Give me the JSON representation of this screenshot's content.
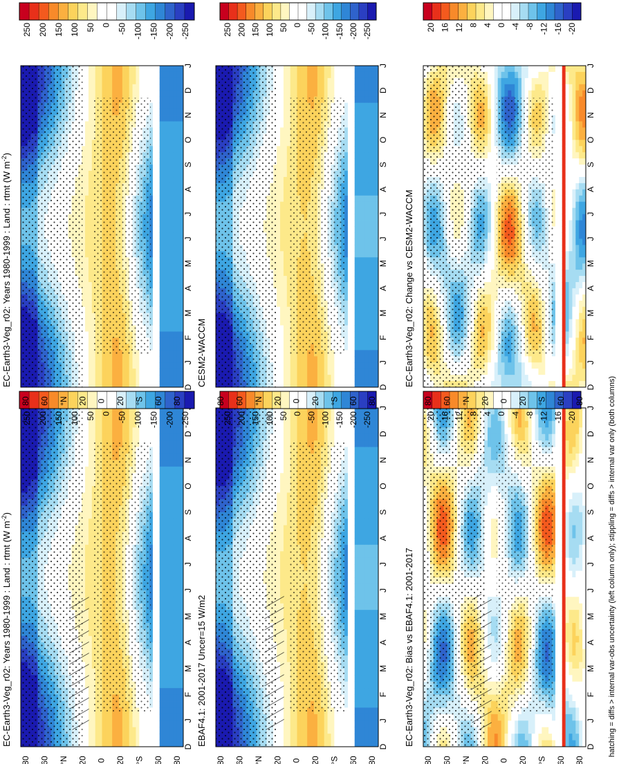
{
  "footnote": "hatching = diffs > internal var-obs uncertainty (left column only); stippling = diffs > internal var only (both columns)",
  "months": [
    "D",
    "J",
    "F",
    "M",
    "A",
    "M",
    "J",
    "J",
    "A",
    "S",
    "O",
    "N",
    "D",
    "J"
  ],
  "lat_labels": [
    "80",
    "60",
    "°N",
    "20",
    "0",
    "20",
    "°S",
    "60",
    "80"
  ],
  "colorbar_main": {
    "labels": [
      "250",
      "200",
      "150",
      "100",
      "50",
      "0",
      "-50",
      "-100",
      "-150",
      "-200",
      "-250"
    ],
    "colors": [
      "#c8001e",
      "#e8301a",
      "#f45a1e",
      "#f88a2a",
      "#fbb040",
      "#fcd35c",
      "#fde98a",
      "#fff6c0",
      "#ffffff",
      "#ffffff",
      "#d8f0fa",
      "#a6dcf2",
      "#6ec3ea",
      "#3ea6e2",
      "#2f86d6",
      "#2f63cc",
      "#2a3fc2",
      "#1a1ab0"
    ]
  },
  "colorbar_diff": {
    "labels": [
      "20",
      "16",
      "12",
      "8",
      "4",
      "0",
      "-4",
      "-8",
      "-12",
      "-16",
      "-20"
    ],
    "colors": [
      "#c8001e",
      "#e8301a",
      "#f45a1e",
      "#f88a2a",
      "#fbb040",
      "#fcd35c",
      "#fde98a",
      "#fff6c0",
      "#ffffff",
      "#ffffff",
      "#d8f0fa",
      "#a6dcf2",
      "#6ec3ea",
      "#3ea6e2",
      "#2f86d6",
      "#2f63cc",
      "#2a3fc2",
      "#1a1ab0"
    ]
  },
  "panels": [
    {
      "title": "EC-Earth3-Veg_r02: Years 1980-1999 : Land : rtmt (W m",
      "sup": "-2",
      "tail": ")",
      "kind": "clim",
      "hatch": true
    },
    {
      "title": "EBAF4.1: 2001-2017 Uncer=15 W/m2",
      "sup": "",
      "tail": "",
      "kind": "clim",
      "hatch": true
    },
    {
      "title": "EC-Earth3-Veg_r02: Bias vs EBAF4.1: 2001-2017",
      "sup": "",
      "tail": "",
      "kind": "bias",
      "hatch": true
    },
    {
      "title": "EC-Earth3-Veg_r02: Years 1980-1999 : Land : rtmt (W m",
      "sup": "-2",
      "tail": ")",
      "kind": "clim",
      "hatch": false
    },
    {
      "title": "CESM2-WACCM",
      "sup": "",
      "tail": "",
      "kind": "clim",
      "hatch": false
    },
    {
      "title": "EC-Earth3-Veg_r02: Change vs CESM2-WACCM",
      "sup": "",
      "tail": "",
      "kind": "change",
      "hatch": false
    }
  ]
}
